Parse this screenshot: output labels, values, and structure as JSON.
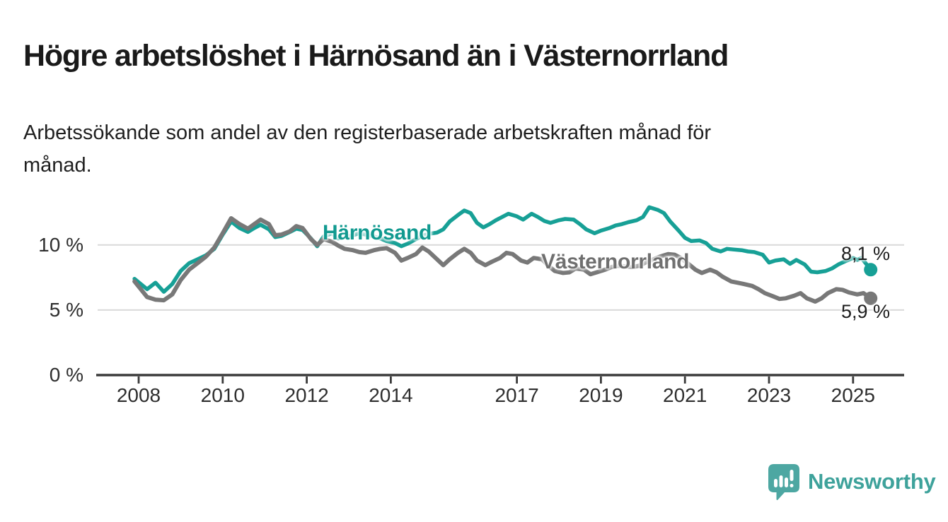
{
  "header": {
    "title": "Högre arbetslöshet i Härnösand än i Västernorrland",
    "subtitle": "Arbetssökande som andel av den registerbaserade arbetskraften månad för\nmånad."
  },
  "branding": {
    "logo_text": "Newsworthy",
    "logo_icon": "bar-chart-speech-bubble",
    "logo_bubble_color": "#4DA7A2",
    "logo_text_color": "#3EA29B"
  },
  "chart_data": {
    "type": "line",
    "title": "Högre arbetslöshet i Härnösand än i Västernorrland",
    "subtitle": "Arbetssökande som andel av den registerbaserade arbetskraften månad för månad.",
    "unit": "%",
    "grid": true,
    "grid_color": "#d9d9d9",
    "axis_color": "#3b3b3b",
    "legend_position": "inline-labels",
    "x_axis": {
      "range": [
        2007.0,
        2026.2
      ],
      "ticks": [
        {
          "label": "2008",
          "year": 2008
        },
        {
          "label": "2010",
          "year": 2010
        },
        {
          "label": "2012",
          "year": 2012
        },
        {
          "label": "2014",
          "year": 2014
        },
        {
          "label": "2017",
          "year": 2017
        },
        {
          "label": "2019",
          "year": 2019
        },
        {
          "label": "2021",
          "year": 2021
        },
        {
          "label": "2023",
          "year": 2023
        },
        {
          "label": "2025",
          "year": 2025
        }
      ]
    },
    "y_axis": {
      "range": [
        0,
        14.7
      ],
      "ticks": [
        {
          "label": "0 %",
          "value": 0
        },
        {
          "label": "5 %",
          "value": 5
        },
        {
          "label": "10 %",
          "value": 10
        }
      ]
    },
    "series": [
      {
        "name": "Härnösand",
        "color": "#17A096",
        "label_color": "#119A90",
        "line_width": 5.5,
        "end_label": "8,1 %",
        "final_value": 8.1,
        "points": [
          [
            2007.9,
            7.4
          ],
          [
            2008.05,
            7.0
          ],
          [
            2008.2,
            6.6
          ],
          [
            2008.4,
            7.1
          ],
          [
            2008.6,
            6.4
          ],
          [
            2008.8,
            7.0
          ],
          [
            2009.0,
            8.0
          ],
          [
            2009.2,
            8.6
          ],
          [
            2009.4,
            8.9
          ],
          [
            2009.6,
            9.2
          ],
          [
            2009.8,
            9.7
          ],
          [
            2010.0,
            10.8
          ],
          [
            2010.2,
            11.8
          ],
          [
            2010.4,
            11.3
          ],
          [
            2010.6,
            11.0
          ],
          [
            2010.75,
            11.3
          ],
          [
            2010.9,
            11.55
          ],
          [
            2011.1,
            11.2
          ],
          [
            2011.25,
            10.6
          ],
          [
            2011.4,
            10.7
          ],
          [
            2011.6,
            11.0
          ],
          [
            2011.75,
            11.25
          ],
          [
            2011.9,
            11.15
          ],
          [
            2012.1,
            10.5
          ],
          [
            2012.25,
            9.9
          ],
          [
            2012.4,
            10.65
          ],
          [
            2012.6,
            10.9
          ],
          [
            2012.75,
            10.5
          ],
          [
            2012.9,
            10.6
          ],
          [
            2013.1,
            10.75
          ],
          [
            2013.25,
            10.9
          ],
          [
            2013.4,
            10.8
          ],
          [
            2013.6,
            10.65
          ],
          [
            2013.75,
            10.5
          ],
          [
            2013.9,
            10.3
          ],
          [
            2014.1,
            10.15
          ],
          [
            2014.25,
            9.9
          ],
          [
            2014.4,
            10.1
          ],
          [
            2014.6,
            10.45
          ],
          [
            2014.75,
            10.7
          ],
          [
            2014.9,
            10.85
          ],
          [
            2015.1,
            10.95
          ],
          [
            2015.25,
            11.2
          ],
          [
            2015.4,
            11.8
          ],
          [
            2015.6,
            12.3
          ],
          [
            2015.75,
            12.65
          ],
          [
            2015.9,
            12.45
          ],
          [
            2016.05,
            11.7
          ],
          [
            2016.2,
            11.35
          ],
          [
            2016.35,
            11.6
          ],
          [
            2016.5,
            11.9
          ],
          [
            2016.65,
            12.15
          ],
          [
            2016.8,
            12.4
          ],
          [
            2017.0,
            12.2
          ],
          [
            2017.15,
            11.95
          ],
          [
            2017.35,
            12.4
          ],
          [
            2017.5,
            12.15
          ],
          [
            2017.65,
            11.85
          ],
          [
            2017.8,
            11.7
          ],
          [
            2018.0,
            11.9
          ],
          [
            2018.15,
            12.0
          ],
          [
            2018.35,
            11.95
          ],
          [
            2018.5,
            11.6
          ],
          [
            2018.65,
            11.2
          ],
          [
            2018.85,
            10.9
          ],
          [
            2019.0,
            11.1
          ],
          [
            2019.2,
            11.3
          ],
          [
            2019.35,
            11.5
          ],
          [
            2019.5,
            11.6
          ],
          [
            2019.65,
            11.75
          ],
          [
            2019.85,
            11.9
          ],
          [
            2020.0,
            12.15
          ],
          [
            2020.15,
            12.9
          ],
          [
            2020.35,
            12.7
          ],
          [
            2020.5,
            12.45
          ],
          [
            2020.65,
            11.8
          ],
          [
            2020.85,
            11.1
          ],
          [
            2021.0,
            10.55
          ],
          [
            2021.15,
            10.3
          ],
          [
            2021.35,
            10.35
          ],
          [
            2021.5,
            10.15
          ],
          [
            2021.65,
            9.7
          ],
          [
            2021.85,
            9.5
          ],
          [
            2022.0,
            9.7
          ],
          [
            2022.15,
            9.65
          ],
          [
            2022.35,
            9.6
          ],
          [
            2022.5,
            9.5
          ],
          [
            2022.65,
            9.45
          ],
          [
            2022.85,
            9.25
          ],
          [
            2023.0,
            8.65
          ],
          [
            2023.15,
            8.8
          ],
          [
            2023.35,
            8.9
          ],
          [
            2023.5,
            8.55
          ],
          [
            2023.65,
            8.85
          ],
          [
            2023.85,
            8.5
          ],
          [
            2024.0,
            7.95
          ],
          [
            2024.15,
            7.9
          ],
          [
            2024.35,
            8.0
          ],
          [
            2024.5,
            8.2
          ],
          [
            2024.65,
            8.5
          ],
          [
            2024.85,
            8.8
          ],
          [
            2025.0,
            9.0
          ],
          [
            2025.1,
            8.85
          ],
          [
            2025.2,
            9.0
          ],
          [
            2025.3,
            8.6
          ],
          [
            2025.42,
            8.1
          ]
        ]
      },
      {
        "name": "Västernorrland",
        "color": "#787878",
        "label_color": "#6F6F6F",
        "line_width": 6,
        "end_label": "5,9 %",
        "final_value": 5.9,
        "points": [
          [
            2007.9,
            7.2
          ],
          [
            2008.05,
            6.6
          ],
          [
            2008.2,
            6.0
          ],
          [
            2008.4,
            5.8
          ],
          [
            2008.6,
            5.75
          ],
          [
            2008.8,
            6.2
          ],
          [
            2009.0,
            7.3
          ],
          [
            2009.2,
            8.1
          ],
          [
            2009.4,
            8.6
          ],
          [
            2009.6,
            9.1
          ],
          [
            2009.8,
            9.8
          ],
          [
            2010.0,
            10.9
          ],
          [
            2010.2,
            12.05
          ],
          [
            2010.4,
            11.6
          ],
          [
            2010.6,
            11.25
          ],
          [
            2010.75,
            11.6
          ],
          [
            2010.9,
            11.95
          ],
          [
            2011.1,
            11.6
          ],
          [
            2011.25,
            10.75
          ],
          [
            2011.4,
            10.8
          ],
          [
            2011.6,
            11.05
          ],
          [
            2011.75,
            11.45
          ],
          [
            2011.9,
            11.3
          ],
          [
            2012.1,
            10.45
          ],
          [
            2012.25,
            10.0
          ],
          [
            2012.4,
            10.45
          ],
          [
            2012.6,
            10.25
          ],
          [
            2012.75,
            9.95
          ],
          [
            2012.9,
            9.7
          ],
          [
            2013.1,
            9.6
          ],
          [
            2013.25,
            9.45
          ],
          [
            2013.4,
            9.4
          ],
          [
            2013.6,
            9.6
          ],
          [
            2013.75,
            9.7
          ],
          [
            2013.9,
            9.75
          ],
          [
            2014.1,
            9.4
          ],
          [
            2014.25,
            8.8
          ],
          [
            2014.4,
            9.0
          ],
          [
            2014.6,
            9.3
          ],
          [
            2014.75,
            9.8
          ],
          [
            2014.9,
            9.5
          ],
          [
            2015.1,
            8.9
          ],
          [
            2015.25,
            8.45
          ],
          [
            2015.4,
            8.9
          ],
          [
            2015.6,
            9.4
          ],
          [
            2015.75,
            9.7
          ],
          [
            2015.9,
            9.4
          ],
          [
            2016.05,
            8.8
          ],
          [
            2016.25,
            8.45
          ],
          [
            2016.4,
            8.7
          ],
          [
            2016.6,
            9.0
          ],
          [
            2016.75,
            9.4
          ],
          [
            2016.9,
            9.3
          ],
          [
            2017.1,
            8.8
          ],
          [
            2017.25,
            8.65
          ],
          [
            2017.4,
            9.0
          ],
          [
            2017.6,
            8.9
          ],
          [
            2017.75,
            8.4
          ],
          [
            2017.9,
            8.0
          ],
          [
            2018.1,
            7.85
          ],
          [
            2018.25,
            7.9
          ],
          [
            2018.4,
            8.2
          ],
          [
            2018.6,
            8.1
          ],
          [
            2018.75,
            7.75
          ],
          [
            2018.9,
            7.9
          ],
          [
            2019.1,
            8.1
          ],
          [
            2019.25,
            8.3
          ],
          [
            2019.4,
            8.4
          ],
          [
            2019.6,
            8.35
          ],
          [
            2019.75,
            8.3
          ],
          [
            2019.9,
            8.4
          ],
          [
            2020.1,
            8.7
          ],
          [
            2020.25,
            8.9
          ],
          [
            2020.4,
            9.1
          ],
          [
            2020.6,
            9.3
          ],
          [
            2020.75,
            9.25
          ],
          [
            2020.9,
            9.0
          ],
          [
            2021.1,
            8.5
          ],
          [
            2021.25,
            8.1
          ],
          [
            2021.4,
            7.85
          ],
          [
            2021.6,
            8.1
          ],
          [
            2021.75,
            7.9
          ],
          [
            2021.9,
            7.55
          ],
          [
            2022.1,
            7.2
          ],
          [
            2022.25,
            7.1
          ],
          [
            2022.4,
            7.0
          ],
          [
            2022.6,
            6.85
          ],
          [
            2022.75,
            6.6
          ],
          [
            2022.9,
            6.3
          ],
          [
            2023.1,
            6.05
          ],
          [
            2023.25,
            5.85
          ],
          [
            2023.4,
            5.9
          ],
          [
            2023.6,
            6.1
          ],
          [
            2023.75,
            6.3
          ],
          [
            2023.9,
            5.9
          ],
          [
            2024.1,
            5.65
          ],
          [
            2024.25,
            5.9
          ],
          [
            2024.4,
            6.3
          ],
          [
            2024.6,
            6.6
          ],
          [
            2024.75,
            6.55
          ],
          [
            2024.9,
            6.35
          ],
          [
            2025.1,
            6.2
          ],
          [
            2025.25,
            6.3
          ],
          [
            2025.42,
            5.9
          ]
        ]
      }
    ]
  }
}
